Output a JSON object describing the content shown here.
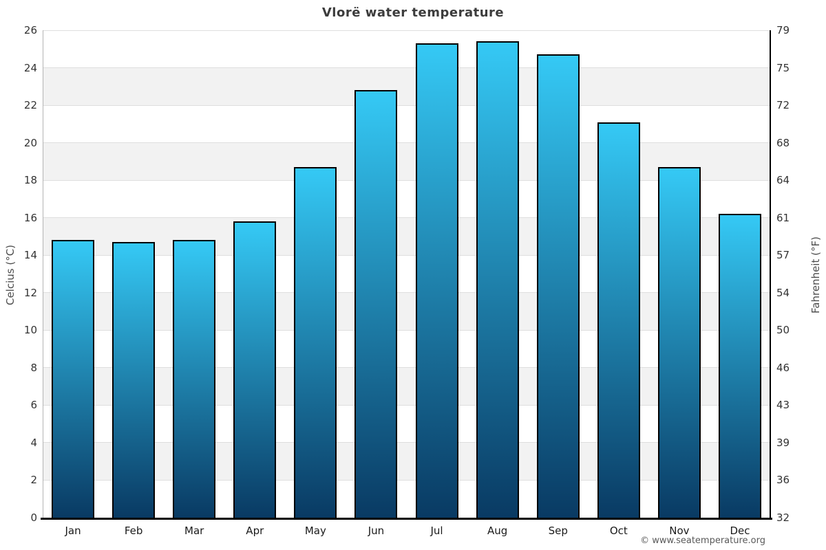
{
  "page": {
    "footer": "© www.seatemperature.org"
  },
  "chart_data": {
    "type": "bar",
    "title": "Vlorë water temperature",
    "categories": [
      "Jan",
      "Feb",
      "Mar",
      "Apr",
      "May",
      "Jun",
      "Jul",
      "Aug",
      "Sep",
      "Oct",
      "Nov",
      "Dec"
    ],
    "values": [
      14.8,
      14.7,
      14.8,
      15.8,
      18.7,
      22.8,
      25.3,
      25.4,
      24.7,
      21.1,
      18.7,
      16.2
    ],
    "xlabel": "",
    "ylabel_left": "Celcius (°C)",
    "ylabel_right": "Fahrenheit (°F)",
    "ylim": [
      0,
      26
    ],
    "y_left_ticks": [
      "26",
      "24",
      "22",
      "20",
      "18",
      "16",
      "14",
      "12",
      "10",
      "8",
      "6",
      "4",
      "2",
      "0"
    ],
    "y_right_ticks": [
      "79",
      "75",
      "72",
      "68",
      "64",
      "61",
      "57",
      "54",
      "50",
      "46",
      "43",
      "39",
      "36",
      "32"
    ],
    "grid": "horizontal",
    "legend": "none",
    "colors": {
      "bar_gradient_top": "#35c9f5",
      "bar_gradient_bottom": "#093a63",
      "bar_border": "#000000",
      "band_fill": "#f2f2f2",
      "gridline": "#dedede",
      "title_text": "#3c3c3c",
      "tick_text": "#333333"
    }
  }
}
